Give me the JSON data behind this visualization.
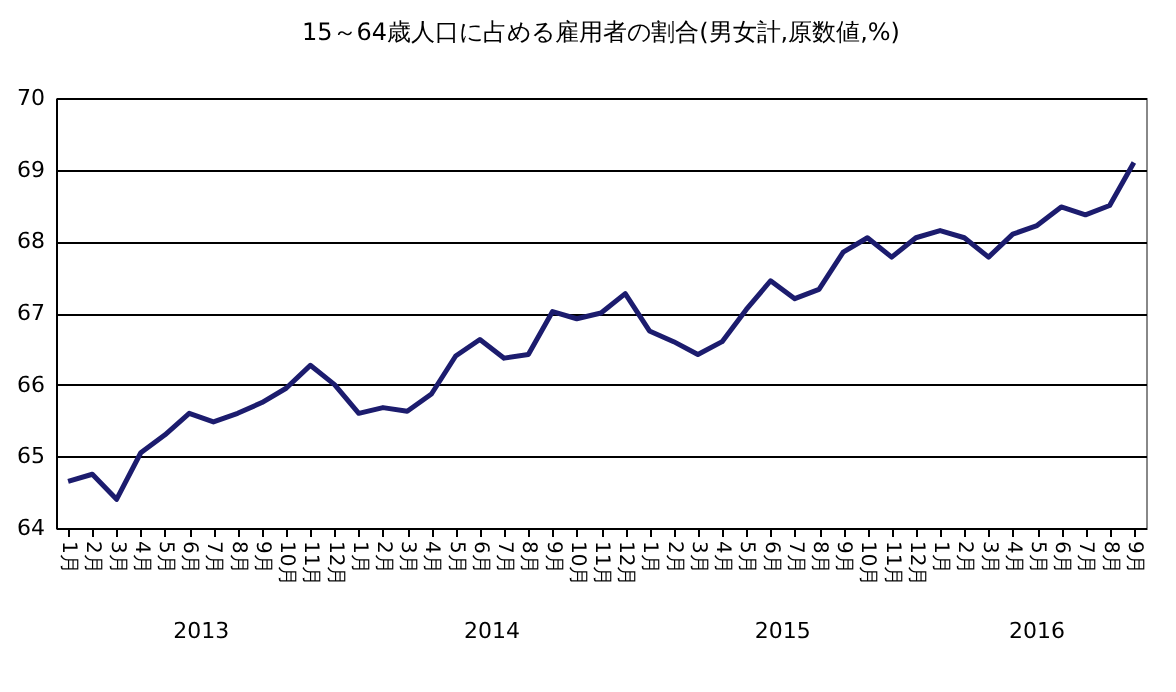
{
  "chart_data": {
    "type": "line",
    "title": "15～64歳人口に占める雇用者の割合(男女計,原数値,%)",
    "categories": [
      "1月",
      "2月",
      "3月",
      "4月",
      "5月",
      "6月",
      "7月",
      "8月",
      "9月",
      "10月",
      "11月",
      "12月",
      "1月",
      "2月",
      "3月",
      "4月",
      "5月",
      "6月",
      "7月",
      "8月",
      "9月",
      "10月",
      "11月",
      "12月",
      "1月",
      "2月",
      "3月",
      "4月",
      "5月",
      "6月",
      "7月",
      "8月",
      "9月",
      "10月",
      "11月",
      "12月",
      "1月",
      "2月",
      "3月",
      "4月",
      "5月",
      "6月",
      "7月",
      "8月",
      "9月"
    ],
    "series": [
      {
        "color": "#1c1c6e",
        "values": [
          64.65,
          64.75,
          64.4,
          65.05,
          65.3,
          65.6,
          65.48,
          65.6,
          65.75,
          65.95,
          66.27,
          66.0,
          65.6,
          65.68,
          65.63,
          65.87,
          66.4,
          66.63,
          66.37,
          66.42,
          67.02,
          66.92,
          67.0,
          67.27,
          66.75,
          66.6,
          66.42,
          66.6,
          67.05,
          67.45,
          67.2,
          67.33,
          67.85,
          68.05,
          67.78,
          68.05,
          68.15,
          68.05,
          67.78,
          68.1,
          68.22,
          68.48,
          68.37,
          68.5,
          69.1
        ]
      }
    ],
    "annotations": [
      "2013",
      "2014",
      "2015",
      "2016"
    ],
    "ylim": [
      64,
      70
    ],
    "yticks": [
      64,
      65,
      66,
      67,
      68,
      69,
      70
    ],
    "grid": "y",
    "legend": false,
    "marker": "none",
    "line_style": "solid"
  }
}
